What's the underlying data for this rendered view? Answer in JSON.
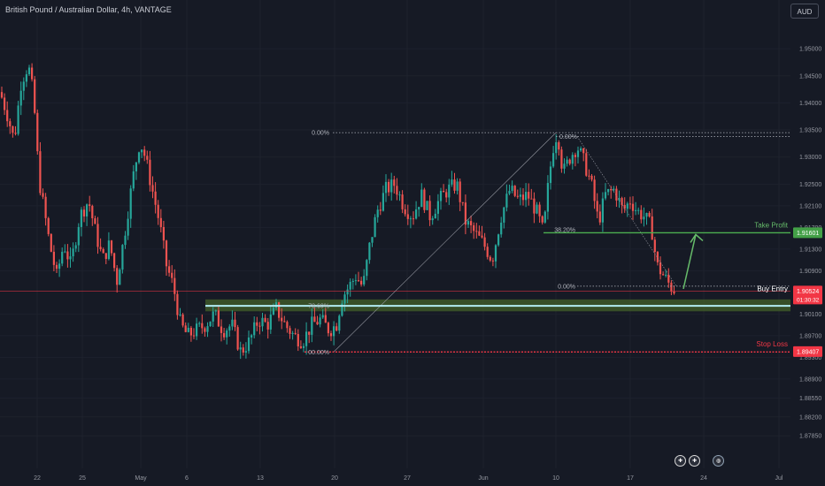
{
  "header": {
    "symbol_line": "British Pound / Australian Dollar, 4h, VANTAGE"
  },
  "currency_button": "AUD",
  "colors": {
    "background": "#161a25",
    "up": "#26a69a",
    "down": "#ef5350",
    "grid": "#1e222d",
    "take_profit": "#4caf50",
    "stop_loss": "#f23645",
    "buy_entry": "#b2ebf2",
    "price": "#f23645"
  },
  "chart_data": {
    "type": "candlestick",
    "interval": "4h",
    "y_axis": {
      "min": 1.8725,
      "max": 1.959,
      "ticks": [
        "1.95000",
        "1.94500",
        "1.94000",
        "1.93500",
        "1.93000",
        "1.92500",
        "1.92100",
        "1.91700",
        "1.91300",
        "1.90900",
        "1.90100",
        "1.89700",
        "1.89300",
        "1.88900",
        "1.88550",
        "1.88200",
        "1.87850"
      ]
    },
    "x_axis": {
      "labels": [
        "22",
        "25",
        "May",
        "6",
        "13",
        "20",
        "27",
        "Jun",
        "10",
        "17",
        "24",
        "Jul"
      ]
    },
    "price_path": [
      [
        0,
        1.942
      ],
      [
        8,
        1.938
      ],
      [
        16,
        1.933
      ],
      [
        24,
        1.944
      ],
      [
        32,
        1.947
      ],
      [
        38,
        1.941
      ],
      [
        44,
        1.926
      ],
      [
        50,
        1.92
      ],
      [
        56,
        1.914
      ],
      [
        64,
        1.908
      ],
      [
        72,
        1.914
      ],
      [
        80,
        1.91
      ],
      [
        90,
        1.919
      ],
      [
        100,
        1.922
      ],
      [
        108,
        1.916
      ],
      [
        116,
        1.911
      ],
      [
        124,
        1.914
      ],
      [
        132,
        1.907
      ],
      [
        140,
        1.915
      ],
      [
        150,
        1.926
      ],
      [
        158,
        1.933
      ],
      [
        164,
        1.93
      ],
      [
        172,
        1.924
      ],
      [
        180,
        1.918
      ],
      [
        188,
        1.91
      ],
      [
        196,
        1.906
      ],
      [
        204,
        1.899
      ],
      [
        212,
        1.897
      ],
      [
        222,
        1.898
      ],
      [
        232,
        1.899
      ],
      [
        242,
        1.901
      ],
      [
        252,
        1.898
      ],
      [
        262,
        1.899
      ],
      [
        272,
        1.894
      ],
      [
        282,
        1.896
      ],
      [
        292,
        1.9
      ],
      [
        302,
        1.899
      ],
      [
        312,
        1.902
      ],
      [
        322,
        1.899
      ],
      [
        332,
        1.897
      ],
      [
        342,
        1.896
      ],
      [
        352,
        1.899
      ],
      [
        362,
        1.9
      ],
      [
        372,
        1.898
      ],
      [
        380,
        1.899
      ],
      [
        386,
        1.904
      ],
      [
        394,
        1.906
      ],
      [
        402,
        1.908
      ],
      [
        410,
        1.906
      ],
      [
        418,
        1.914
      ],
      [
        426,
        1.92
      ],
      [
        436,
        1.924
      ],
      [
        446,
        1.925
      ],
      [
        456,
        1.921
      ],
      [
        466,
        1.919
      ],
      [
        476,
        1.923
      ],
      [
        486,
        1.919
      ],
      [
        496,
        1.922
      ],
      [
        506,
        1.924
      ],
      [
        516,
        1.925
      ],
      [
        526,
        1.918
      ],
      [
        536,
        1.916
      ],
      [
        546,
        1.914
      ],
      [
        556,
        1.911
      ],
      [
        566,
        1.919
      ],
      [
        576,
        1.924
      ],
      [
        586,
        1.922
      ],
      [
        596,
        1.923
      ],
      [
        606,
        1.92
      ],
      [
        614,
        1.916
      ],
      [
        620,
        1.926
      ],
      [
        626,
        1.933
      ],
      [
        630,
        1.9345
      ],
      [
        636,
        1.927
      ],
      [
        644,
        1.93
      ],
      [
        652,
        1.932
      ],
      [
        660,
        1.929
      ],
      [
        668,
        1.925
      ],
      [
        676,
        1.918
      ],
      [
        684,
        1.923
      ],
      [
        694,
        1.924
      ],
      [
        704,
        1.92
      ],
      [
        712,
        1.922
      ],
      [
        720,
        1.92
      ],
      [
        728,
        1.919
      ],
      [
        736,
        1.917
      ],
      [
        742,
        1.91
      ],
      [
        750,
        1.908
      ],
      [
        758,
        1.906
      ],
      [
        764,
        1.9052
      ]
    ],
    "fib_retracements": [
      {
        "labels": [
          "0.00%",
          "78.60%",
          "00.00%"
        ]
      },
      {
        "labels": [
          "0.00%",
          "38.20%",
          "0.00%"
        ]
      }
    ],
    "levels": {
      "take_profit": {
        "label": "Take Profit",
        "value": "1.91601",
        "price": 1.91601
      },
      "buy_entry": {
        "label": "Buy Entry",
        "value": "1.90524",
        "price": 1.90524,
        "countdown": "01:30:32"
      },
      "stop_loss": {
        "label": "Stop Loss",
        "value": "1.89407",
        "price": 1.89407
      }
    },
    "fib_levels": {
      "upper_0": 1.9345,
      "upper_0_b": 1.9338,
      "level_382": 1.9167,
      "level_786": 1.9025,
      "level_100": 1.894
    },
    "support_zone": {
      "top": 1.9037,
      "bottom": 1.9015
    }
  }
}
